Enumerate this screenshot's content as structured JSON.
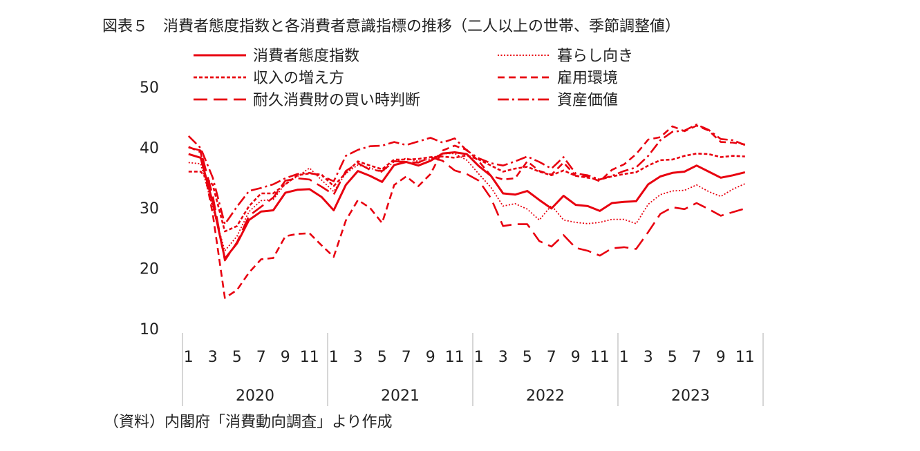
{
  "title": "図表５　消費者態度指数と各消費者意識指標の推移（二人以上の世帯、季節調整値）",
  "source": "（資料）内閣府「消費動向調査」より作成",
  "chart_data": {
    "type": "line",
    "ylim": [
      10,
      50
    ],
    "yticks": [
      10,
      20,
      30,
      40,
      50
    ],
    "years": [
      "2020",
      "2021",
      "2022",
      "2023"
    ],
    "month_labels": [
      "1",
      "3",
      "5",
      "7",
      "9",
      "11"
    ],
    "line_color": "#e8000f",
    "series": [
      {
        "name": "消費者態度指数",
        "style": "solid",
        "values": [
          38.9,
          38.3,
          30.9,
          21.6,
          24.1,
          28.0,
          29.4,
          29.6,
          32.5,
          33.0,
          33.1,
          31.8,
          29.6,
          33.8,
          36.1,
          35.3,
          34.3,
          37.1,
          37.6,
          37.0,
          37.8,
          39.0,
          39.2,
          38.9,
          36.9,
          35.3,
          32.4,
          32.2,
          32.8,
          31.3,
          29.9,
          32.0,
          30.5,
          30.3,
          29.5,
          30.8,
          31.0,
          31.1,
          33.9,
          35.2,
          35.8,
          36.0,
          37.0,
          36.0,
          35.0,
          35.4,
          35.9
        ]
      },
      {
        "name": "暮らし向き",
        "style": "dotted",
        "values": [
          37.5,
          37.3,
          30.0,
          22.9,
          25.3,
          29.4,
          31.2,
          31.4,
          34.0,
          35.2,
          36.6,
          34.6,
          32.7,
          35.7,
          37.1,
          36.6,
          35.9,
          37.7,
          38.2,
          37.7,
          38.1,
          39.0,
          39.0,
          37.9,
          35.6,
          33.4,
          30.3,
          30.7,
          29.8,
          28.0,
          30.4,
          28.0,
          27.6,
          27.4,
          27.6,
          28.1,
          28.1,
          27.4,
          30.6,
          32.2,
          32.8,
          32.9,
          33.8,
          32.7,
          31.9,
          33.1,
          34.0
        ]
      },
      {
        "name": "収入の増え方",
        "style": "short-dash",
        "values": [
          36.0,
          36.0,
          33.8,
          26.1,
          27.0,
          30.3,
          32.4,
          32.4,
          33.9,
          35.4,
          35.7,
          35.5,
          33.6,
          35.8,
          37.7,
          37.0,
          36.4,
          38.0,
          38.0,
          38.1,
          38.4,
          38.5,
          38.3,
          38.7,
          38.0,
          37.0,
          36.0,
          36.5,
          36.8,
          36.0,
          35.4,
          36.2,
          35.3,
          35.0,
          34.7,
          35.2,
          35.6,
          35.9,
          37.0,
          37.9,
          38.0,
          38.6,
          39.0,
          38.9,
          38.4,
          38.6,
          38.5
        ]
      },
      {
        "name": "雇用環境",
        "style": "dash",
        "values": [
          40.1,
          39.2,
          29.0,
          15.1,
          16.4,
          19.3,
          21.5,
          21.7,
          25.3,
          25.7,
          25.8,
          23.8,
          21.9,
          27.9,
          31.3,
          30.0,
          27.5,
          33.8,
          35.2,
          33.6,
          35.6,
          39.5,
          40.3,
          39.6,
          37.7,
          35.3,
          34.7,
          34.9,
          37.7,
          36.1,
          35.5,
          37.5,
          35.3,
          35.2,
          34.4,
          36.3,
          37.2,
          38.9,
          41.3,
          41.7,
          43.5,
          42.7,
          43.6,
          42.8,
          40.9,
          40.8,
          40.5
        ]
      },
      {
        "name": "耐久消費財の買い時判断",
        "style": "long-dash",
        "values": [
          40.0,
          39.5,
          32.0,
          21.3,
          24.3,
          28.7,
          30.2,
          31.7,
          34.5,
          34.9,
          34.7,
          33.5,
          32.2,
          36.1,
          37.4,
          36.3,
          36.1,
          37.7,
          37.6,
          37.5,
          38.4,
          37.8,
          36.2,
          35.6,
          34.5,
          31.6,
          27.0,
          27.3,
          27.3,
          24.5,
          23.6,
          25.5,
          23.4,
          22.9,
          22.1,
          23.3,
          23.5,
          23.2,
          26.0,
          29.0,
          30.1,
          29.8,
          30.8,
          29.8,
          28.7,
          29.3,
          29.9
        ]
      },
      {
        "name": "資産価値",
        "style": "dash-dot",
        "values": [
          41.9,
          39.9,
          35.0,
          27.3,
          30.2,
          32.8,
          33.3,
          33.9,
          34.9,
          35.6,
          35.8,
          35.3,
          34.4,
          38.6,
          39.6,
          40.2,
          40.3,
          40.9,
          40.4,
          41.0,
          41.6,
          40.8,
          41.5,
          39.5,
          38.2,
          37.4,
          37.0,
          37.7,
          38.5,
          37.6,
          36.5,
          38.4,
          35.7,
          35.4,
          34.7,
          35.3,
          36.1,
          36.7,
          38.6,
          41.2,
          42.6,
          42.8,
          43.8,
          42.9,
          41.4,
          41.2,
          40.4
        ]
      }
    ]
  }
}
